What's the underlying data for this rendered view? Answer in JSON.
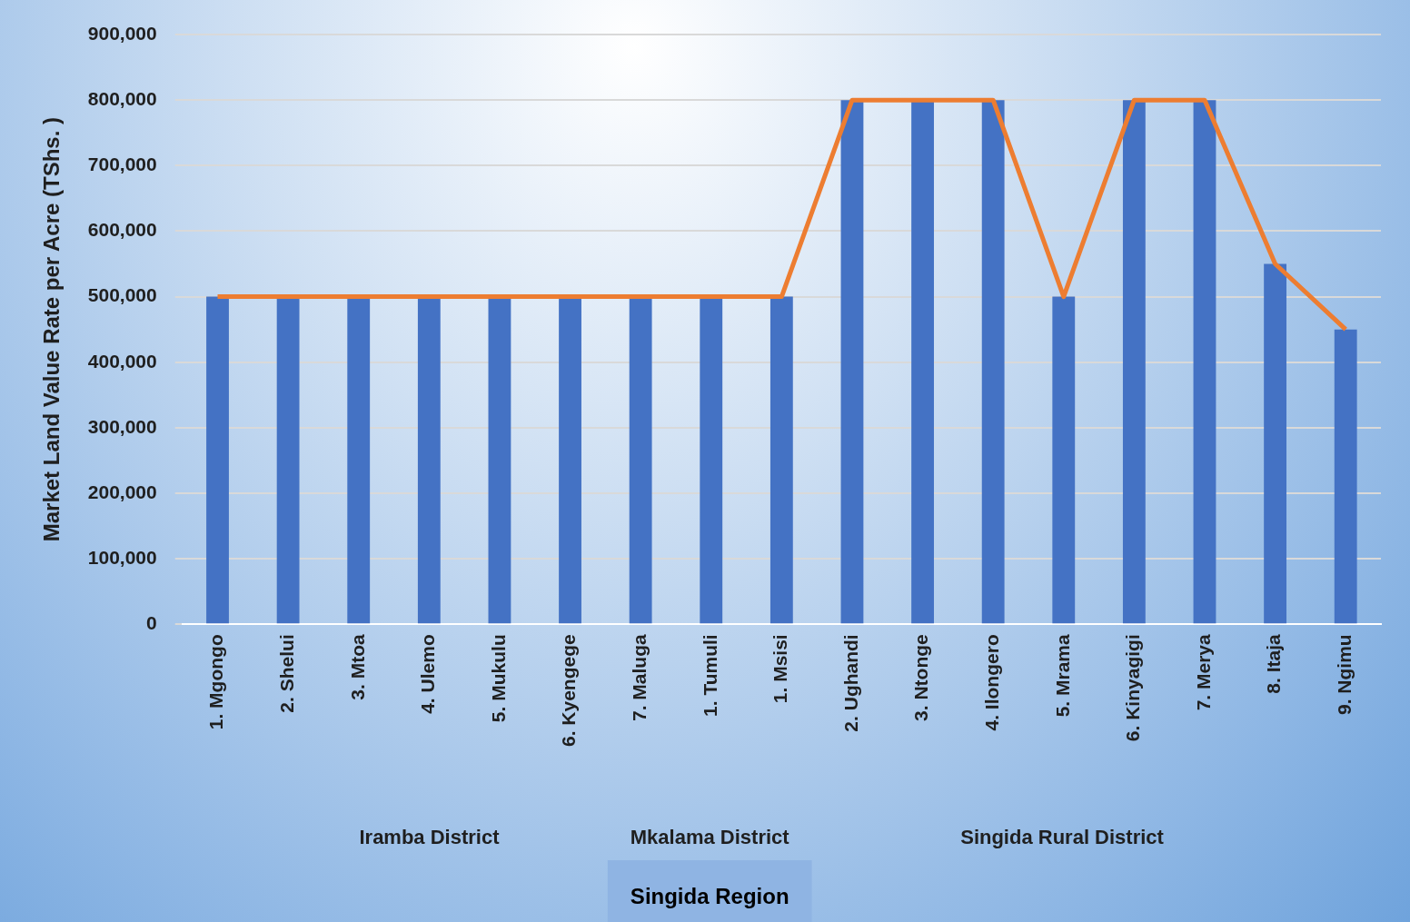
{
  "chart_data": {
    "type": "bar",
    "ylabel": "Market Land Value Rate per Acre (TShs. )",
    "categories": [
      "1. Mgongo",
      "2. Shelui",
      "3. Mtoa",
      "4. Ulemo",
      "5. Mukulu",
      "6. Kyengege",
      "7. Maluga",
      "1. Tumuli",
      "1. Msisi",
      "2. Ughandi",
      "3. Ntonge",
      "4. Ilongero",
      "5. Mrama",
      "6. Kinyagigi",
      "7. Merya",
      "8. Itaja",
      "9. Ngimu"
    ],
    "series": [
      {
        "color": "#4472c4",
        "values": [
          500000,
          500000,
          500000,
          500000,
          500000,
          500000,
          500000,
          500000,
          500000,
          800000,
          800000,
          800000,
          500000,
          800000,
          800000,
          550000,
          450000
        ]
      },
      {
        "type": "line",
        "color": "#ed7d31",
        "values": [
          500000,
          500000,
          500000,
          500000,
          500000,
          500000,
          500000,
          500000,
          500000,
          800000,
          800000,
          800000,
          500000,
          800000,
          800000,
          550000,
          450000
        ]
      }
    ],
    "ylim": [
      0,
      900000
    ],
    "yticks": [
      {
        "value": 0,
        "label": "0"
      },
      {
        "value": 100000,
        "label": "100,000"
      },
      {
        "value": 200000,
        "label": "200,000"
      },
      {
        "value": 300000,
        "label": "300,000"
      },
      {
        "value": 400000,
        "label": "400,000"
      },
      {
        "value": 500000,
        "label": "500,000"
      },
      {
        "value": 600000,
        "label": "600,000"
      },
      {
        "value": 700000,
        "label": "700,000"
      },
      {
        "value": 800000,
        "label": "800,000"
      },
      {
        "value": 900000,
        "label": "900,000"
      }
    ],
    "grid": "y",
    "legend": false,
    "marker": "none",
    "annotations": [
      "Iramba District",
      "Mkalama District",
      "Singida Rural District",
      "Singida Region"
    ]
  }
}
